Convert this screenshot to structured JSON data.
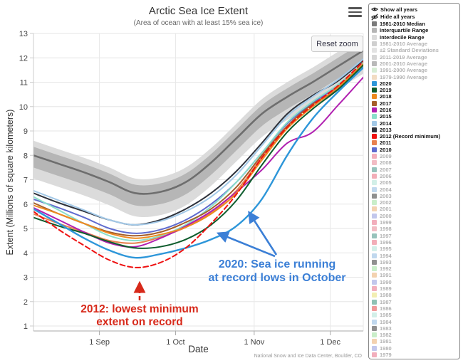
{
  "header": {
    "title": "Arctic Sea Ice Extent",
    "subtitle": "(Area of ocean with at least 15% sea ice)"
  },
  "toolbar": {
    "reset_zoom_label": "Reset zoom"
  },
  "axes": {
    "y_label": "Extent (Millions of square kilometers)",
    "x_label": "Date",
    "y_ticks": [
      1,
      2,
      3,
      4,
      5,
      6,
      7,
      8,
      9,
      10,
      11,
      12,
      13
    ],
    "x_ticks": [
      {
        "label": "1 Sep",
        "day": 26
      },
      {
        "label": "1 Oct",
        "day": 56
      },
      {
        "label": "1 Nov",
        "day": 87
      },
      {
        "label": "1 Dec",
        "day": 117
      }
    ]
  },
  "attribution": "National Snow and Ice Data Center, Boulder, CO",
  "annotations": [
    {
      "id": "ann-2012",
      "lines": [
        "2012: lowest minimum",
        "extent on record"
      ],
      "color": "#d7291a"
    },
    {
      "id": "ann-2020",
      "lines": [
        "2020: Sea ice running",
        "at record lows in October"
      ],
      "color": "#3b7fd6"
    }
  ],
  "legend": {
    "controls": [
      {
        "label": "Show all years",
        "icon": "eye-icon"
      },
      {
        "label": "Hide all years",
        "icon": "eye-slash-icon"
      }
    ],
    "items": [
      {
        "label": "1981-2010 Median",
        "color": "#7a7a7a",
        "active": true
      },
      {
        "label": "Interquartile Range",
        "color": "#b5b5b5",
        "active": true
      },
      {
        "label": "Interdecile Range",
        "color": "#dbdbdb",
        "active": true
      },
      {
        "label": "1981-2010 Average",
        "color": "#cfcfcf",
        "active": false
      },
      {
        "label": "±2 Standard Deviations",
        "color": "#e2e2e2",
        "active": false
      },
      {
        "label": "2011-2019 Average",
        "color": "#d6d6d6",
        "active": false
      },
      {
        "label": "2001-2010 Average",
        "color": "#b9b9b9",
        "active": false
      },
      {
        "label": "1991-2000 Average",
        "color": "#d6ecd4",
        "active": false
      },
      {
        "label": "1979-1990 Average",
        "color": "#f2dcc3",
        "active": false
      },
      {
        "label": "2020",
        "color": "#2d96d9",
        "active": true
      },
      {
        "label": "2019",
        "color": "#0d5c2c",
        "active": true
      },
      {
        "label": "2018",
        "color": "#ee8a20",
        "active": true
      },
      {
        "label": "2017",
        "color": "#a55e2a",
        "active": true
      },
      {
        "label": "2016",
        "color": "#b01fb0",
        "active": true
      },
      {
        "label": "2015",
        "color": "#8adfca",
        "active": true
      },
      {
        "label": "2014",
        "color": "#a3c9e8",
        "active": true
      },
      {
        "label": "2013",
        "color": "#2e323c",
        "active": true
      },
      {
        "label": "2012 (Record minimum)",
        "color": "#ee1111",
        "active": true
      },
      {
        "label": "2011",
        "color": "#e8814f",
        "active": true
      },
      {
        "label": "2010",
        "color": "#5f6bcf",
        "active": true
      },
      {
        "label": "2009",
        "color": "#f2aebc",
        "active": false
      },
      {
        "label": "2008",
        "color": "#f2bcc4",
        "active": false
      },
      {
        "label": "2007",
        "color": "#97c3bc",
        "active": false
      },
      {
        "label": "2006",
        "color": "#f2aeb8",
        "active": false
      },
      {
        "label": "2005",
        "color": "#d2efe8",
        "active": false
      },
      {
        "label": "2004",
        "color": "#c0d8ee",
        "active": false
      },
      {
        "label": "2003",
        "color": "#909090",
        "active": false
      },
      {
        "label": "2002",
        "color": "#c9eec9",
        "active": false
      },
      {
        "label": "2001",
        "color": "#f3d2b0",
        "active": false
      },
      {
        "label": "2000",
        "color": "#c2c7ec",
        "active": false
      },
      {
        "label": "1999",
        "color": "#f2aebc",
        "active": false
      },
      {
        "label": "1998",
        "color": "#f2bcc4",
        "active": false
      },
      {
        "label": "1997",
        "color": "#97c3bc",
        "active": false
      },
      {
        "label": "1996",
        "color": "#f2aeb8",
        "active": false
      },
      {
        "label": "1995",
        "color": "#d2efe8",
        "active": false
      },
      {
        "label": "1994",
        "color": "#c0d8ee",
        "active": false
      },
      {
        "label": "1993",
        "color": "#909090",
        "active": false
      },
      {
        "label": "1992",
        "color": "#c9eec9",
        "active": false
      },
      {
        "label": "1991",
        "color": "#f3d2b0",
        "active": false
      },
      {
        "label": "1990",
        "color": "#c2c7ec",
        "active": false
      },
      {
        "label": "1989",
        "color": "#f2aebc",
        "active": false
      },
      {
        "label": "1988",
        "color": "#f2eeb2",
        "active": false
      },
      {
        "label": "1987",
        "color": "#8fc2b4",
        "active": false
      },
      {
        "label": "1986",
        "color": "#f09a9a",
        "active": false
      },
      {
        "label": "1985",
        "color": "#d2efe8",
        "active": false
      },
      {
        "label": "1984",
        "color": "#c0d8ee",
        "active": false
      },
      {
        "label": "1983",
        "color": "#909090",
        "active": false
      },
      {
        "label": "1982",
        "color": "#c9eec9",
        "active": false
      },
      {
        "label": "1981",
        "color": "#f3d2b0",
        "active": false
      },
      {
        "label": "1980",
        "color": "#c2c7ec",
        "active": false
      },
      {
        "label": "1979",
        "color": "#f2aebc",
        "active": false
      }
    ]
  },
  "chart_data": {
    "type": "line",
    "title": "Arctic Sea Ice Extent",
    "subtitle": "(Area of ocean with at least 15% sea ice)",
    "xlabel": "Date",
    "ylabel": "Extent (Millions of square kilometers)",
    "ylim": [
      1,
      13
    ],
    "x_unit": "days since 6 Aug",
    "x_range_days": [
      0,
      130
    ],
    "x": [
      0,
      10,
      20,
      30,
      40,
      50,
      60,
      70,
      80,
      90,
      100,
      110,
      120,
      130
    ],
    "x_dates": [
      "Aug 6",
      "Aug 16",
      "Aug 26",
      "Sep 5",
      "Sep 15",
      "Sep 25",
      "Oct 5",
      "Oct 15",
      "Oct 25",
      "Nov 4",
      "Nov 14",
      "Nov 24",
      "Dec 4",
      "Dec 14"
    ],
    "grid": true,
    "legend_position": "right",
    "median": {
      "name": "1981-2010 Median",
      "color": "#6e6e6e",
      "values": [
        8.0,
        7.65,
        7.3,
        6.9,
        6.45,
        6.5,
        6.9,
        7.7,
        8.7,
        9.7,
        10.4,
        11.0,
        11.65,
        12.3
      ]
    },
    "bands": [
      {
        "name": "Interdecile Range",
        "color": "#dbdbdb",
        "hi": [
          8.6,
          8.25,
          7.9,
          7.5,
          7.05,
          7.1,
          7.5,
          8.3,
          9.3,
          10.3,
          11.0,
          11.6,
          12.25,
          12.9
        ],
        "lo": [
          7.05,
          6.7,
          6.35,
          5.95,
          5.5,
          5.55,
          5.95,
          6.75,
          7.75,
          8.75,
          9.45,
          10.05,
          10.7,
          11.35
        ]
      },
      {
        "name": "Interquartile Range",
        "color": "#b6b6b6",
        "hi": [
          8.35,
          8.0,
          7.65,
          7.25,
          6.8,
          6.85,
          7.25,
          8.05,
          9.05,
          10.05,
          10.75,
          11.35,
          12.0,
          12.65
        ],
        "lo": [
          7.5,
          7.15,
          6.8,
          6.4,
          5.95,
          6.0,
          6.4,
          7.2,
          8.2,
          9.2,
          9.9,
          10.5,
          11.15,
          11.8
        ]
      }
    ],
    "series": [
      {
        "name": "2020",
        "color": "#2d96d9",
        "width": 2.4,
        "values": [
          5.8,
          5.2,
          4.6,
          4.1,
          3.8,
          3.95,
          4.2,
          4.55,
          5.1,
          6.2,
          8.0,
          9.5,
          10.6,
          11.6
        ]
      },
      {
        "name": "2019",
        "color": "#0d5c2c",
        "values": [
          5.45,
          5.1,
          4.8,
          4.45,
          4.2,
          4.25,
          4.55,
          5.15,
          6.15,
          7.6,
          8.95,
          9.9,
          10.7,
          11.7
        ]
      },
      {
        "name": "2018",
        "color": "#ee8a20",
        "values": [
          5.95,
          5.6,
          5.2,
          4.8,
          4.6,
          4.75,
          5.05,
          5.6,
          6.45,
          7.8,
          9.1,
          10.0,
          10.8,
          11.75
        ]
      },
      {
        "name": "2017",
        "color": "#a55e2a",
        "values": [
          6.05,
          5.6,
          5.2,
          4.85,
          4.7,
          4.85,
          5.25,
          5.8,
          6.7,
          8.0,
          9.2,
          10.1,
          10.7,
          11.7
        ]
      },
      {
        "name": "2016",
        "color": "#b01fb0",
        "values": [
          5.85,
          5.35,
          4.85,
          4.4,
          4.25,
          4.6,
          5.1,
          5.7,
          6.5,
          7.4,
          8.5,
          8.95,
          10.05,
          11.2
        ]
      },
      {
        "name": "2015",
        "color": "#8adfca",
        "values": [
          6.3,
          5.75,
          5.2,
          4.7,
          4.5,
          4.7,
          5.15,
          5.9,
          6.9,
          8.1,
          9.35,
          10.2,
          10.9,
          11.8
        ]
      },
      {
        "name": "2014",
        "color": "#a3c9e8",
        "values": [
          6.55,
          6.15,
          5.75,
          5.35,
          5.15,
          5.3,
          5.7,
          6.3,
          7.2,
          8.4,
          9.6,
          10.4,
          11.1,
          11.95
        ]
      },
      {
        "name": "2013",
        "color": "#2e323c",
        "values": [
          6.45,
          6.05,
          5.7,
          5.35,
          5.15,
          5.35,
          5.8,
          6.45,
          7.35,
          8.5,
          9.7,
          10.45,
          11.05,
          11.9
        ]
      },
      {
        "name": "2012 (Record minimum)",
        "color": "#ee1111",
        "dash": "7,4",
        "values": [
          5.7,
          4.95,
          4.3,
          3.7,
          3.4,
          3.6,
          4.2,
          5.2,
          6.4,
          7.9,
          9.15,
          10.05,
          10.85,
          11.85
        ]
      },
      {
        "name": "2011",
        "color": "#e8814f",
        "values": [
          5.6,
          5.2,
          4.85,
          4.5,
          4.4,
          4.65,
          5.05,
          5.65,
          6.55,
          7.9,
          9.1,
          10.0,
          10.75,
          11.7
        ]
      },
      {
        "name": "2010",
        "color": "#5f6bcf",
        "values": [
          6.2,
          5.85,
          5.45,
          5.0,
          4.8,
          4.95,
          5.35,
          6.0,
          6.9,
          8.1,
          9.3,
          10.15,
          10.85,
          11.75
        ]
      }
    ]
  }
}
